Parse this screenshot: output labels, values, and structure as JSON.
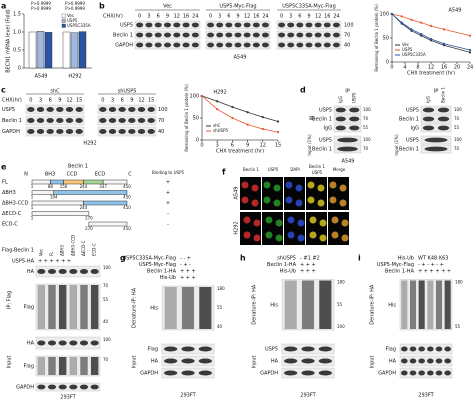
{
  "a": {
    "letter": "a",
    "type": "bar",
    "ylabel": "BECN1 mRNA level (Fold)",
    "pvalues": [
      "P>0.9999",
      "P>0.9999",
      "P>0.9999",
      "P>0.9999"
    ],
    "categories": [
      "A549",
      "H292"
    ],
    "series": [
      {
        "name": "Vec",
        "color": "#ffffff",
        "values": [
          1.0,
          1.0
        ]
      },
      {
        "name": "USP5",
        "color": "#9fb8dc",
        "values": [
          1.02,
          0.98
        ]
      },
      {
        "name": "USP5C335A",
        "color": "#2b55a3",
        "values": [
          0.99,
          1.01
        ]
      }
    ],
    "ylim": [
      0,
      1.5
    ],
    "yticks": [
      0,
      0.5,
      {
        "value": 1,
        "label": "1.0"
      },
      1.5
    ]
  },
  "b": {
    "letter": "b",
    "chx": "CHX(hr)",
    "times": [
      0,
      3,
      6,
      9,
      12,
      16,
      24
    ],
    "groups": [
      "Vec",
      "USP5-Myc-Flag",
      "USP5C335A-Myc-Flag"
    ],
    "rows": [
      "USP5",
      "Beclin 1",
      "GAPDH"
    ],
    "markers": [
      100,
      70,
      40
    ],
    "cell": "A549",
    "chart": {
      "type": "line",
      "title": "A549",
      "ylabel": "Remaining of Beclin 1 protein (%)",
      "xlabel": "CHX treatment (hr)",
      "x": [
        0,
        3,
        6,
        9,
        12,
        16,
        24
      ],
      "series": [
        {
          "name": "Vec",
          "color": "#333333",
          "values": [
            100,
            80,
            65,
            55,
            45,
            35,
            20
          ]
        },
        {
          "name": "USP5",
          "color": "#e8562a",
          "values": [
            100,
            95,
            88,
            82,
            75,
            68,
            55
          ]
        },
        {
          "name": "USP5C335A",
          "color": "#2b55a3",
          "values": [
            100,
            82,
            68,
            58,
            48,
            38,
            25
          ]
        }
      ],
      "xlim": [
        0,
        24
      ],
      "xticks": [
        0,
        4,
        8,
        12,
        16,
        20,
        24
      ],
      "ylim": [
        0,
        100
      ],
      "yticks": [
        0,
        50,
        100
      ]
    }
  },
  "c": {
    "letter": "c",
    "groups": [
      "shC",
      "shUSP5"
    ],
    "chx": "CHX(hr)",
    "times": [
      0,
      3,
      6,
      9,
      12,
      15
    ],
    "rows": [
      "USP5",
      "Beclin 1",
      "GAPDH"
    ],
    "markers": [
      100,
      70,
      40
    ],
    "cell": "H292",
    "chart": {
      "type": "line",
      "title": "H292",
      "ylabel": "Remaining of Beclin 1 protein (%)",
      "xlabel": "CHX treatment (hr)",
      "x": [
        0,
        3,
        6,
        9,
        12,
        15
      ],
      "series": [
        {
          "name": "shC",
          "color": "#333333",
          "values": [
            100,
            88,
            75,
            63,
            52,
            42
          ]
        },
        {
          "name": "shUSP5",
          "color": "#e8562a",
          "values": [
            100,
            70,
            50,
            35,
            25,
            18
          ]
        }
      ],
      "xlim": [
        0,
        15
      ],
      "xticks": [
        0,
        3,
        6,
        9,
        12,
        15
      ],
      "ylim": [
        0,
        100
      ],
      "yticks": [
        0,
        50,
        100
      ]
    }
  },
  "d": {
    "letter": "d",
    "left": {
      "ip": "IP",
      "lanes": [
        "IgG",
        "USP5"
      ],
      "ib": "IB",
      "rows_ip": [
        "USP5",
        "Beclin 1",
        "IgG"
      ],
      "input": "Input (1%)",
      "rows_input": [
        "USP5",
        "Beclin 1"
      ],
      "markers": [
        100,
        70,
        55,
        100,
        70
      ],
      "cell": "A549"
    },
    "right": {
      "ip": "IP",
      "lanes": [
        "IgG",
        "Beclin 1"
      ],
      "rows_ip": [
        "USP5",
        "Beclin 1",
        "IgG"
      ],
      "input": "Input (1%)",
      "rows_input": [
        "USP5",
        "Beclin 1"
      ],
      "markers": [
        100,
        70,
        55,
        100,
        70
      ]
    }
  },
  "e": {
    "letter": "e",
    "protein": "Beclin 1",
    "domains": [
      "N",
      "BH3",
      "CCD",
      "ECD",
      "C"
    ],
    "binding": "Binding to USP5",
    "constructs": [
      {
        "name": "FL",
        "positions": [
          1,
          88,
          150,
          244,
          337,
          450
        ],
        "binding": "+"
      },
      {
        "name": "ΔBH3",
        "positions": [
          1,
          104,
          450
        ],
        "binding": "+"
      },
      {
        "name": "ΔBH3-CCD",
        "positions": [
          1,
          244,
          450
        ],
        "binding": "+"
      },
      {
        "name": "ΔECD-C",
        "positions": [
          1,
          270
        ],
        "binding": "-"
      },
      {
        "name": "ECD-C",
        "positions": [
          270,
          450
        ],
        "binding": "-"
      }
    ],
    "blot": {
      "flag": "Flag-Beclin 1",
      "lanes": [
        "Vec",
        "FL",
        "ΔBH3",
        "ΔBH3-CCD",
        "ΔECD-C",
        "ECD-C"
      ],
      "ha_row": "USP5-HA",
      "ha_signs": "+  +  +  +  +  +",
      "ip": "IP: Flag",
      "input": "Input",
      "rows_ip": [
        "HA",
        "Flag"
      ],
      "rows_input": [
        "HA",
        "Flag",
        "GAPDH"
      ],
      "markers": [
        100,
        70,
        55,
        40,
        100,
        70
      ],
      "cell": "293FT"
    }
  },
  "f": {
    "letter": "f",
    "headers": [
      {
        "text": "Beclin 1",
        "color": "#e53030"
      },
      {
        "text": "USP5",
        "color": "#2aa02a"
      },
      {
        "text": "DAPI",
        "color": "#3050e0"
      },
      {
        "text": "Beclin 1",
        "color": "#e53030"
      },
      {
        "text": "USP5",
        "color": "#2aa02a"
      },
      {
        "text": "Merge",
        "color": "#d040d0"
      }
    ],
    "rows": [
      "A549",
      "H292"
    ]
  },
  "g": {
    "letter": "g",
    "rows_top": [
      {
        "label": "USP5C335A-Myc-Flag",
        "signs": "-   -   +"
      },
      {
        "label": "USP5-Myc-Flag",
        "signs": "-   +   -"
      },
      {
        "label": "Beclin 1-HA",
        "signs": "+   +   +"
      },
      {
        "label": "His-Ub",
        "signs": "+   +   +"
      }
    ],
    "ip": "Denature-IP: HA",
    "his": "His",
    "input": "Input",
    "rows_input": [
      "Flag",
      "HA",
      "GAPDH"
    ],
    "markers": [
      180,
      55,
      40
    ],
    "cell": "293FT"
  },
  "h": {
    "letter": "h",
    "rows_top": [
      {
        "label": "shUSP5",
        "signs": "-  #1  #2"
      },
      {
        "label": "Beclin 1-HA",
        "signs": "+   +   +"
      },
      {
        "label": "His-Ub",
        "signs": "+   +   +"
      }
    ],
    "ip": "Denature-IP: HA",
    "his": "His",
    "input": "Input",
    "rows_input": [
      "USP5",
      "HA",
      "GAPDH"
    ],
    "markers": [
      180,
      55,
      100
    ],
    "cell": "293FT"
  },
  "i": {
    "letter": "i",
    "rows_top": [
      {
        "label": "His-Ub",
        "signs": "WT   K48   K63"
      },
      {
        "label": "USP5-Myc-Flag",
        "signs": "- + - + - +"
      },
      {
        "label": "Beclin 1-HA",
        "signs": "+ + + + + +"
      }
    ],
    "ip": "Denature-IP: HA",
    "his": "His",
    "input": "Input",
    "rows_input": [
      "Flag",
      "HA",
      "GAPDH"
    ],
    "markers": [
      180,
      55
    ],
    "cell": "293FT"
  }
}
